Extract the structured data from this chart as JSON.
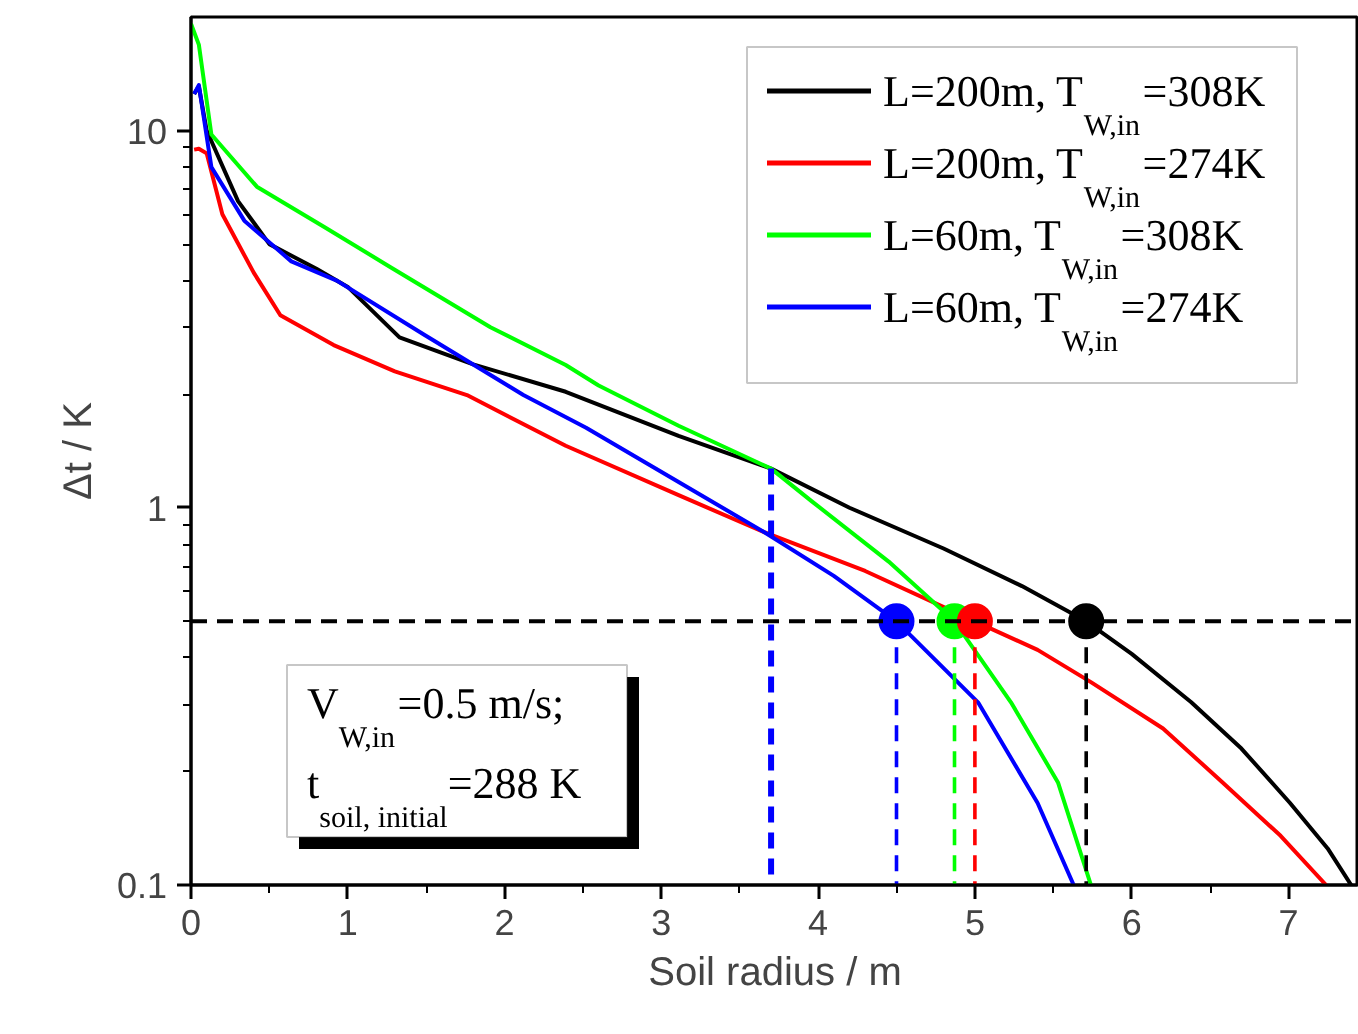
{
  "chart_data": {
    "type": "line",
    "xlabel": "Soil radius / m",
    "ylabel": "Δt / K",
    "xlim": [
      0,
      7.45
    ],
    "ylim": [
      0.1,
      20
    ],
    "xticks": [
      0,
      1,
      2,
      3,
      4,
      5,
      6,
      7
    ],
    "yticks": [
      0.1,
      1,
      10
    ],
    "log": "y",
    "grid": false,
    "legend": "top right",
    "line_style": "solid",
    "series": [
      {
        "name": "L=200m, T$_{W,in}$=308K",
        "color": "#000000",
        "x": [
          0.02,
          0.05,
          0.1,
          0.3,
          0.5,
          0.8,
          1.0,
          1.33,
          1.8,
          2.39,
          3.11,
          3.7,
          4.2,
          4.8,
          5.3,
          5.71,
          6.0,
          6.38,
          6.7,
          7.01,
          7.25,
          7.4
        ],
        "values": [
          12.5,
          13.1,
          10,
          6.5,
          5.0,
          4.3,
          3.85,
          2.83,
          2.4,
          2.03,
          1.55,
          1.27,
          1.0,
          0.78,
          0.62,
          0.5,
          0.41,
          0.305,
          0.23,
          0.165,
          0.125,
          0.1
        ]
      },
      {
        "name": "L=200m, T$_{W,in}$=274K",
        "color": "#ff0000",
        "x": [
          0.02,
          0.05,
          0.1,
          0.2,
          0.4,
          0.57,
          0.91,
          1.3,
          1.76,
          2.39,
          3.11,
          3.66,
          4.3,
          5.0,
          5.4,
          5.74,
          6.2,
          6.58,
          6.95,
          7.24
        ],
        "values": [
          8.9,
          8.95,
          8.7,
          6.0,
          4.2,
          3.24,
          2.7,
          2.3,
          1.99,
          1.46,
          1.08,
          0.86,
          0.68,
          0.5,
          0.42,
          0.345,
          0.26,
          0.187,
          0.135,
          0.1
        ]
      },
      {
        "name": "L=60m, T$_{W,in}$=308K",
        "color": "#00ff00",
        "x": [
          0.0,
          0.05,
          0.13,
          0.42,
          0.85,
          1.27,
          1.91,
          2.39,
          2.6,
          3.11,
          3.7,
          3.96,
          4.45,
          4.87,
          5.23,
          5.53,
          5.74
        ],
        "values": [
          19.2,
          16.9,
          9.76,
          7.1,
          5.55,
          4.35,
          3.01,
          2.39,
          2.11,
          1.65,
          1.27,
          1.04,
          0.72,
          0.5,
          0.305,
          0.187,
          0.1
        ]
      },
      {
        "name": "L=60m, T$_{W,in}$=274K",
        "color": "#0000ff",
        "x": [
          0.02,
          0.05,
          0.13,
          0.34,
          0.64,
          0.93,
          1.49,
          2.12,
          2.52,
          3.11,
          3.66,
          4.1,
          4.5,
          5.02,
          5.4,
          5.63
        ],
        "values": [
          12.5,
          13.2,
          8.0,
          5.77,
          4.5,
          4.0,
          2.87,
          1.99,
          1.63,
          1.17,
          0.86,
          0.66,
          0.5,
          0.305,
          0.165,
          0.1
        ]
      },
      {
        "type": "line",
        "line_style": "dashed",
        "color": "#0000ff",
        "x": [
          3.7,
          3.7
        ],
        "values": [
          1.27,
          0.1
        ]
      },
      {
        "type": "line",
        "line_style": "dashed",
        "color": "#0000ff",
        "x": [
          4.5,
          4.5
        ],
        "values": [
          0.5,
          0.1
        ]
      },
      {
        "type": "line",
        "line_style": "dashed",
        "color": "#00ff00",
        "x": [
          4.87,
          4.87
        ],
        "values": [
          0.5,
          0.1
        ]
      },
      {
        "type": "line",
        "line_style": "dashed",
        "color": "#ff0000",
        "x": [
          5.0,
          5.0
        ],
        "values": [
          0.5,
          0.1
        ]
      },
      {
        "type": "line",
        "line_style": "dashed",
        "color": "#000000",
        "x": [
          5.71,
          5.71
        ],
        "values": [
          0.5,
          0.1
        ]
      },
      {
        "type": "scatter",
        "marker": "circle",
        "x": [
          4.5,
          4.87,
          5.0,
          5.71
        ],
        "values": [
          0.5,
          0.5,
          0.5,
          0.5
        ],
        "colors": [
          "#0000ff",
          "#00ff00",
          "#ff0000",
          "#000000"
        ]
      }
    ],
    "ref_lines": [
      {
        "axis": "y",
        "value": 0.5,
        "color": "#000000",
        "line_style": "dashed"
      }
    ],
    "annotations": [
      "V$_{W,in}$=0.5 m/s;",
      "t$_{soil, initial}$=288 K"
    ]
  }
}
